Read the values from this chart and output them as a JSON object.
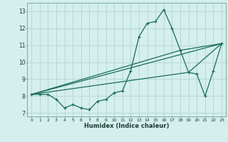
{
  "xlabel": "Humidex (Indice chaleur)",
  "bg_color": "#d4efec",
  "grid_color": "#b8d8d4",
  "line_color": "#1a6b5e",
  "xlim": [
    -0.5,
    23.5
  ],
  "ylim": [
    6.8,
    13.5
  ],
  "yticks": [
    7,
    8,
    9,
    10,
    11,
    12,
    13
  ],
  "xticks": [
    0,
    1,
    2,
    3,
    4,
    5,
    6,
    7,
    8,
    9,
    10,
    11,
    12,
    13,
    14,
    15,
    16,
    17,
    18,
    19,
    20,
    21,
    22,
    23
  ],
  "line1_x": [
    0,
    1,
    2,
    3,
    4,
    5,
    6,
    7,
    8,
    9,
    10,
    11,
    12,
    13,
    14,
    15,
    16,
    17,
    18,
    19,
    20,
    21,
    22,
    23
  ],
  "line1_y": [
    8.1,
    8.1,
    8.1,
    7.8,
    7.3,
    7.5,
    7.3,
    7.2,
    7.7,
    7.8,
    8.2,
    8.3,
    9.5,
    11.5,
    12.3,
    12.4,
    13.1,
    12.0,
    10.7,
    9.4,
    9.3,
    8.0,
    9.5,
    11.1
  ],
  "line2_x": [
    0,
    23
  ],
  "line2_y": [
    8.1,
    11.1
  ],
  "line3_x": [
    0,
    18,
    23
  ],
  "line3_y": [
    8.1,
    10.7,
    11.1
  ],
  "line4_x": [
    0,
    19,
    23
  ],
  "line4_y": [
    8.1,
    9.4,
    11.1
  ]
}
